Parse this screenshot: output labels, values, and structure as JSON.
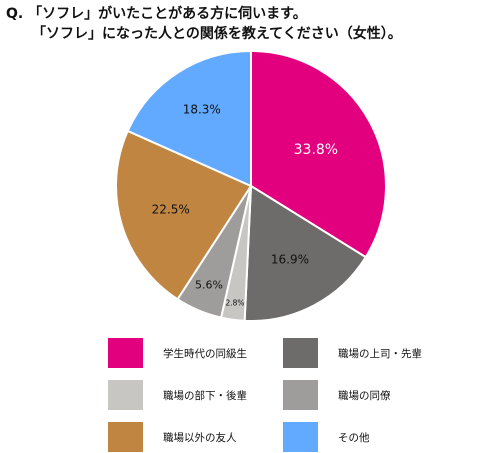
{
  "question": {
    "line1": "Q. 「ソフレ」がいたことがある方に伺います。",
    "line2": "「ソフレ」になった人との関係を教えてください（女性）。"
  },
  "chart_data": {
    "type": "pie",
    "start_angle_deg": 0,
    "direction": "clockwise",
    "slices": [
      {
        "label": "学生時代の同級生",
        "value": 33.8,
        "value_label": "33.8%",
        "color": "#e3007f",
        "label_color": "#ffffff"
      },
      {
        "label": "職場の上司・先輩",
        "value": 16.9,
        "value_label": "16.9%",
        "color": "#6d6c6b",
        "label_color": "#111111"
      },
      {
        "label": "職場の部下・後輩",
        "value": 2.8,
        "value_label": "2.8%",
        "color": "#c8c6c2",
        "label_color": "#111111"
      },
      {
        "label": "職場の同僚",
        "value": 5.6,
        "value_label": "5.6%",
        "color": "#9e9d9b",
        "label_color": "#111111"
      },
      {
        "label": "職場以外の友人",
        "value": 22.5,
        "value_label": "22.5%",
        "color": "#c08641",
        "label_color": "#111111"
      },
      {
        "label": "その他",
        "value": 18.3,
        "value_label": "18.3%",
        "color": "#62aaff",
        "label_color": "#111111"
      }
    ],
    "legend": {
      "placement": "bottom",
      "columns": [
        [
          "学生時代の同級生",
          "職場の部下・後輩",
          "職場以外の友人"
        ],
        [
          "職場の上司・先輩",
          "職場の同僚",
          "その他"
        ]
      ]
    }
  }
}
